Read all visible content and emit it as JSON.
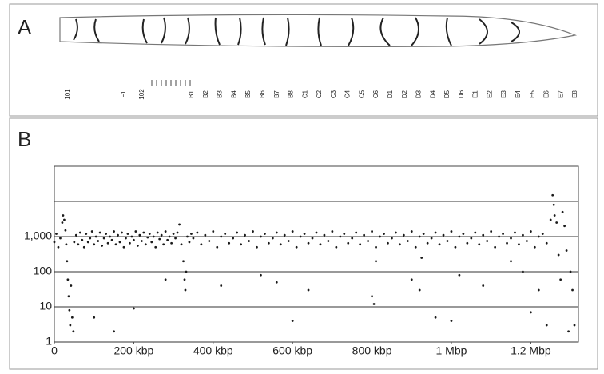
{
  "panel_a": {
    "label": "A",
    "band_labels": [
      "101",
      "F1",
      "102",
      "B1",
      "B2",
      "B3",
      "B4",
      "B5",
      "B6",
      "B7",
      "B8",
      "C1",
      "C2",
      "C3",
      "C4",
      "C5",
      "C6",
      "D1",
      "D2",
      "D3",
      "D4",
      "D5",
      "D6",
      "E1",
      "E2",
      "E3",
      "E4",
      "E5",
      "E6",
      "E7",
      "E8"
    ]
  },
  "panel_b": {
    "label": "B"
  },
  "chart_data": {
    "type": "scatter",
    "color": "#1a1a1a",
    "log_y": true,
    "grid": true,
    "xlim": [
      0,
      1320
    ],
    "xticks": [
      0,
      {
        "value": 200,
        "label": "200 kbp"
      },
      {
        "value": 400,
        "label": "400 kbp"
      },
      {
        "value": 600,
        "label": "600 kbp"
      },
      {
        "value": 800,
        "label": "800 kbp"
      },
      {
        "value": 1000,
        "label": "1 Mbp"
      },
      {
        "value": 1200,
        "label": "1.2 Mbp"
      }
    ],
    "ylim": [
      1,
      100000
    ],
    "yticks": [
      1,
      10,
      100,
      {
        "value": 1000,
        "label": "1,000"
      }
    ],
    "unlabeled_gridlines": [
      10000
    ],
    "x": [
      0,
      5,
      10,
      15,
      20,
      22,
      25,
      28,
      30,
      32,
      34,
      36,
      38,
      40,
      42,
      45,
      48,
      50,
      55,
      60,
      65,
      70,
      75,
      80,
      85,
      90,
      95,
      100,
      105,
      110,
      115,
      120,
      125,
      130,
      135,
      140,
      145,
      150,
      155,
      160,
      165,
      170,
      175,
      180,
      185,
      190,
      195,
      200,
      205,
      210,
      215,
      220,
      225,
      230,
      235,
      240,
      245,
      250,
      255,
      260,
      265,
      270,
      275,
      280,
      285,
      290,
      295,
      300,
      305,
      310,
      315,
      320,
      325,
      328,
      330,
      332,
      335,
      340,
      345,
      350,
      360,
      370,
      380,
      390,
      400,
      410,
      420,
      430,
      440,
      450,
      460,
      470,
      480,
      490,
      500,
      510,
      520,
      530,
      540,
      550,
      560,
      570,
      580,
      590,
      600,
      610,
      620,
      630,
      640,
      650,
      660,
      670,
      680,
      690,
      700,
      710,
      720,
      730,
      740,
      750,
      760,
      770,
      780,
      790,
      800,
      810,
      820,
      830,
      840,
      850,
      860,
      870,
      880,
      890,
      900,
      910,
      920,
      930,
      940,
      950,
      960,
      970,
      980,
      990,
      1000,
      1010,
      1020,
      1030,
      1040,
      1050,
      1060,
      1070,
      1080,
      1090,
      1100,
      1110,
      1120,
      1130,
      1140,
      1150,
      1160,
      1170,
      1180,
      1190,
      1200,
      1210,
      1220,
      1230,
      1240,
      100,
      150,
      200,
      280,
      420,
      520,
      560,
      600,
      640,
      800,
      805,
      810,
      900,
      920,
      925,
      960,
      1000,
      1020,
      1080,
      1150,
      1180,
      1200,
      1220,
      1240,
      1250,
      1255,
      1258,
      1260,
      1265,
      1270,
      1275,
      1280,
      1285,
      1290,
      1295,
      1300,
      1305,
      1310
    ],
    "values": [
      700,
      1200,
      500,
      900,
      2500,
      4000,
      3000,
      1500,
      600,
      200,
      60,
      20,
      8,
      3,
      40,
      5,
      2,
      700,
      1100,
      600,
      1300,
      800,
      500,
      1200,
      700,
      900,
      1400,
      600,
      1000,
      750,
      1300,
      550,
      900,
      1200,
      650,
      1000,
      800,
      1400,
      600,
      1100,
      700,
      1300,
      500,
      900,
      1200,
      650,
      1000,
      800,
      1400,
      550,
      1100,
      750,
      1300,
      600,
      950,
      1200,
      700,
      1000,
      500,
      1300,
      850,
      1100,
      600,
      1400,
      800,
      1000,
      650,
      1200,
      900,
      1300,
      2200,
      600,
      200,
      60,
      30,
      100,
      1000,
      700,
      1200,
      900,
      1300,
      600,
      1100,
      750,
      1400,
      500,
      1000,
      1200,
      650,
      900,
      1300,
      600,
      1100,
      750,
      1400,
      500,
      1000,
      1200,
      650,
      900,
      1300,
      600,
      1100,
      750,
      1400,
      500,
      1000,
      1200,
      650,
      900,
      1300,
      600,
      1100,
      750,
      1400,
      500,
      1000,
      1200,
      650,
      900,
      1300,
      600,
      1100,
      750,
      1400,
      500,
      1000,
      1200,
      650,
      900,
      1300,
      600,
      1100,
      750,
      1400,
      500,
      1000,
      1200,
      650,
      900,
      1300,
      600,
      1100,
      750,
      1400,
      500,
      1000,
      1200,
      650,
      900,
      1300,
      600,
      1100,
      750,
      1400,
      500,
      1000,
      1200,
      650,
      900,
      1300,
      600,
      1100,
      750,
      1400,
      500,
      1000,
      1200,
      650,
      5,
      2,
      9,
      60,
      40,
      80,
      50,
      4,
      30,
      20,
      12,
      200,
      60,
      30,
      250,
      5,
      4,
      80,
      40,
      200,
      100,
      7,
      30,
      3,
      3000,
      15000,
      8000,
      4000,
      2500,
      300,
      60,
      5000,
      2000,
      400,
      2,
      100,
      30,
      3
    ]
  }
}
